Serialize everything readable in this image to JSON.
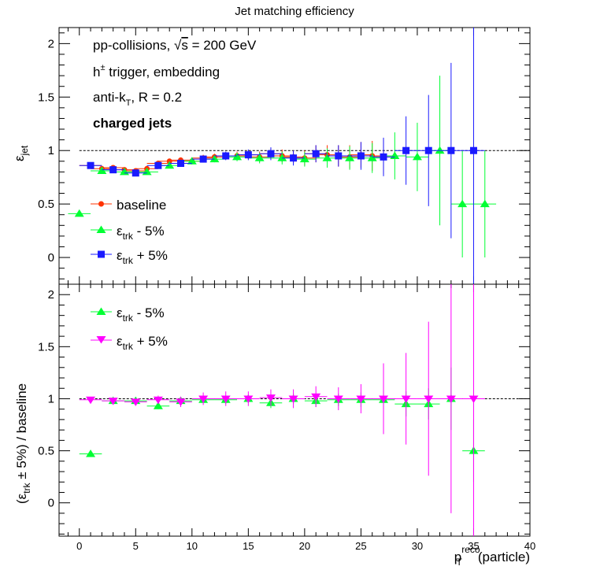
{
  "chart_data": [
    {
      "type": "scatter",
      "panel": "top",
      "title": "Jet matching efficiency",
      "ylabel_main": "ε",
      "ylabel_sub": "jet",
      "xlim": [
        -1.8,
        40
      ],
      "ylim": [
        -0.25,
        2.15
      ],
      "xticks": [
        0,
        5,
        10,
        15,
        20,
        25,
        30,
        35,
        40
      ],
      "yticks": [
        0,
        0.5,
        1,
        1.5,
        2
      ],
      "ytick_labels": [
        "0",
        "0.5",
        "1",
        "1.5",
        "2"
      ],
      "reference_line": 1,
      "annotations": [
        {
          "pre": "pp-collisions, ",
          "sqrt": "√",
          "sqrt_arg": "s",
          "post": " = 200 GeV"
        },
        {
          "main": "h",
          "sup": "±",
          "post": " trigger, embedding"
        },
        {
          "main": "anti-k",
          "sub": "T",
          "post": ", R = 0.2"
        },
        {
          "bold": "charged jets"
        }
      ],
      "legend_position": "bottom-left",
      "series": [
        {
          "name": "baseline",
          "color": "#ff3300",
          "marker": "circle",
          "x": [
            1,
            2,
            3,
            4,
            5,
            6,
            7,
            8,
            9,
            10,
            11,
            12,
            13,
            14,
            15,
            16,
            17,
            18,
            19,
            20,
            21,
            22,
            23,
            24,
            25,
            26,
            27
          ],
          "y": [
            0.86,
            0.83,
            0.84,
            0.82,
            0.81,
            0.83,
            0.88,
            0.9,
            0.91,
            0.9,
            0.93,
            0.94,
            0.95,
            0.95,
            0.96,
            0.94,
            0.97,
            0.95,
            0.94,
            0.93,
            0.97,
            0.96,
            0.95,
            0.94,
            0.96,
            0.95,
            0.94
          ],
          "yerr": [
            0.02,
            0.02,
            0.02,
            0.02,
            0.02,
            0.02,
            0.02,
            0.02,
            0.02,
            0.02,
            0.03,
            0.03,
            0.03,
            0.04,
            0.04,
            0.05,
            0.05,
            0.06,
            0.06,
            0.07,
            0.08,
            0.09,
            0.1,
            0.11,
            0.12,
            0.14,
            0.16
          ]
        },
        {
          "name": "ε",
          "sub": "trk",
          "post": " - 5%",
          "color": "#00ff33",
          "marker": "triangle-up",
          "x": [
            0,
            2,
            4,
            6,
            8,
            10,
            12,
            14,
            16,
            18,
            20,
            22,
            24,
            26,
            28,
            30,
            32,
            34,
            36
          ],
          "y": [
            0.41,
            0.81,
            0.8,
            0.8,
            0.86,
            0.9,
            0.92,
            0.94,
            0.93,
            0.93,
            0.92,
            0.93,
            0.93,
            0.93,
            0.95,
            0.94,
            1.0,
            0.5,
            0.5
          ],
          "yerr": [
            0.02,
            0.02,
            0.02,
            0.02,
            0.02,
            0.03,
            0.03,
            0.04,
            0.05,
            0.06,
            0.07,
            0.09,
            0.11,
            0.14,
            0.22,
            0.32,
            0.7,
            0.5,
            0.5
          ]
        },
        {
          "name": "ε",
          "sub": "trk",
          "post": " + 5%",
          "color": "#1a1aff",
          "marker": "square",
          "x": [
            1,
            3,
            5,
            7,
            9,
            11,
            13,
            15,
            17,
            19,
            21,
            23,
            25,
            27,
            29,
            31,
            33,
            35
          ],
          "y": [
            0.86,
            0.82,
            0.79,
            0.86,
            0.88,
            0.92,
            0.95,
            0.96,
            0.97,
            0.93,
            0.97,
            0.95,
            0.95,
            0.94,
            1.0,
            1.0,
            1.0,
            1.0
          ],
          "yerr": [
            0.02,
            0.02,
            0.02,
            0.02,
            0.03,
            0.03,
            0.04,
            0.05,
            0.06,
            0.07,
            0.08,
            0.1,
            0.13,
            0.18,
            0.32,
            0.52,
            0.82,
            1.4
          ]
        }
      ]
    },
    {
      "type": "scatter",
      "panel": "bottom",
      "ylabel_pre": "(ε",
      "ylabel_sub": "trk",
      "ylabel_post": " ± 5%) / baseline",
      "xlabel_main": "p",
      "xlabel_sub": "T",
      "xlabel_sup": "reco",
      "xlabel_post": "(particle)",
      "xlim": [
        -1.8,
        40
      ],
      "ylim": [
        -0.32,
        2.1
      ],
      "xticks": [
        0,
        5,
        10,
        15,
        20,
        25,
        30,
        35,
        40
      ],
      "xtick_labels": [
        "0",
        "5",
        "10",
        "15",
        "20",
        "25",
        "30",
        "35",
        "40"
      ],
      "yticks": [
        0,
        0.5,
        1,
        1.5,
        2
      ],
      "ytick_labels": [
        "0",
        "0.5",
        "1",
        "1.5",
        "2"
      ],
      "reference_line": 1,
      "legend_position": "top-left",
      "series": [
        {
          "name": "ε",
          "sub": "trk",
          "post": " - 5%",
          "color": "#00ff33",
          "marker": "triangle-up",
          "x": [
            1,
            3,
            5,
            7,
            9,
            11,
            13,
            15,
            17,
            19,
            21,
            23,
            25,
            27,
            29,
            31,
            33,
            35
          ],
          "y": [
            0.47,
            0.98,
            0.98,
            0.93,
            0.98,
            0.99,
            0.99,
            1.0,
            0.96,
            1.0,
            0.98,
            0.99,
            0.99,
            0.99,
            0.95,
            0.95,
            1.0,
            0.5
          ],
          "yerr": [
            0.02,
            0.02,
            0.02,
            0.03,
            0.03,
            0.03,
            0.04,
            0.04,
            0.05,
            0.05,
            0.06,
            0.06,
            0.07,
            0.09,
            0.12,
            0.15,
            0.3,
            0.3
          ]
        },
        {
          "name": "ε",
          "sub": "trk",
          "post": " + 5%",
          "color": "#ff00ff",
          "marker": "triangle-down",
          "x": [
            1,
            3,
            5,
            7,
            9,
            11,
            13,
            15,
            17,
            19,
            21,
            23,
            25,
            27,
            29,
            31,
            33,
            35
          ],
          "y": [
            0.99,
            0.98,
            0.97,
            0.99,
            0.97,
            1.0,
            1.0,
            1.0,
            1.01,
            1.0,
            1.02,
            1.0,
            1.0,
            1.0,
            1.0,
            1.0,
            1.0,
            1.0
          ],
          "yerr": [
            0.02,
            0.02,
            0.03,
            0.04,
            0.05,
            0.06,
            0.07,
            0.07,
            0.08,
            0.09,
            0.1,
            0.11,
            0.14,
            0.34,
            0.44,
            0.74,
            1.1,
            1.4
          ]
        }
      ]
    }
  ]
}
